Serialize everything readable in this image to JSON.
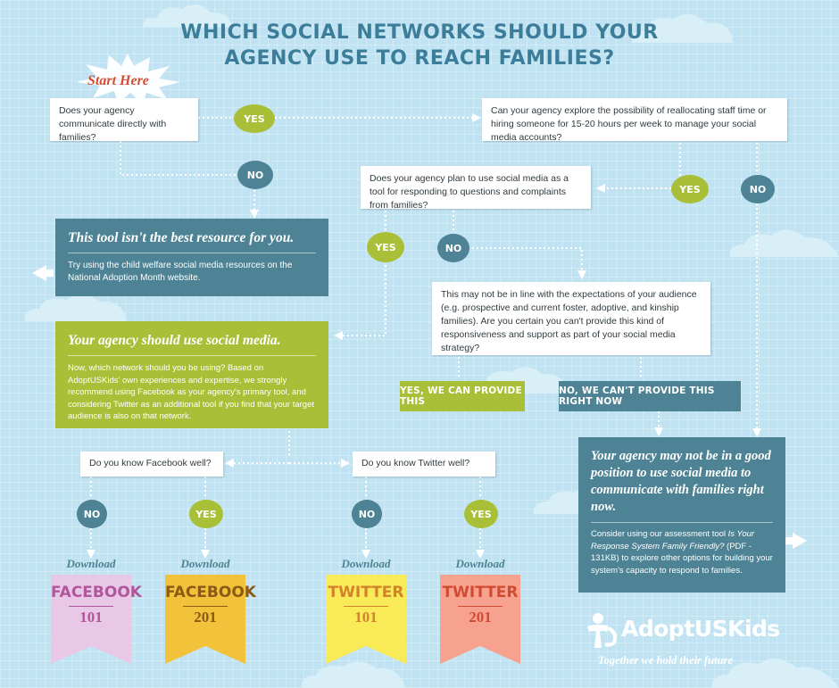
{
  "title": {
    "line1": "WHICH SOCIAL NETWORKS SHOULD YOUR",
    "line2": "AGENCY USE TO REACH FAMILIES?"
  },
  "start_label": "Start Here",
  "questions": {
    "communicate": "Does your agency communicate directly with families?",
    "reallocate": "Can your agency explore the possibility of reallocating staff time or hiring someone for 15-20 hours per week to manage your social media accounts?",
    "respond": "Does your agency plan to use social media as a tool for responding to questions and complaints from families?",
    "expectations": "This may not be in line with the expectations of your audience (e.g. prospective and current foster, adoptive, and kinship families). Are you certain you can't provide this kind of responsiveness and support as part of your social media strategy?",
    "facebook": "Do you know Facebook well?",
    "twitter": "Do you know Twitter well?"
  },
  "answers": {
    "yes": "YES",
    "no": "NO"
  },
  "banners": {
    "can_provide": "YES, WE CAN PROVIDE THIS",
    "cant_provide": "NO, WE CAN'T PROVIDE THIS RIGHT NOW"
  },
  "results": {
    "not_best": {
      "heading": "This tool isn't the best resource for you.",
      "body": "Try using the child welfare social media resources on the National Adoption Month website."
    },
    "use_social": {
      "heading": "Your agency should use social media.",
      "body": "Now, which network should you be using? Based on AdoptUSKids' own experiences and expertise, we strongly recommend using Facebook as your agency's primary tool, and considering Twitter as an additional tool if you find that your target audience is also on that network."
    },
    "not_position": {
      "heading": "Your agency may not be in a good position to use social media to communicate with families right now.",
      "body_prefix": "Consider using our assessment tool ",
      "body_italic": "Is Your Response System Family Friendly?",
      "body_suffix": " (PDF - 131KB) to explore other options for building your system's capacity to respond to families."
    }
  },
  "downloads": [
    {
      "label": "Download",
      "name": "FACEBOOK",
      "number": "101",
      "color": "#e8c8e6",
      "text_color": "#b2569c"
    },
    {
      "label": "Download",
      "name": "FACEBOOK",
      "number": "201",
      "color": "#f2c33a",
      "text_color": "#8a5a16"
    },
    {
      "label": "Download",
      "name": "TWITTER",
      "number": "101",
      "color": "#f9ea57",
      "text_color": "#d4812c"
    },
    {
      "label": "Download",
      "name": "TWITTER",
      "number": "201",
      "color": "#f7a28f",
      "text_color": "#d14a34"
    }
  ],
  "logo": {
    "text": "AdoptUSKids",
    "tagline": "Together we hold their future"
  },
  "colors": {
    "background": "#bfe3f2",
    "title": "#3c7d9a",
    "yes": "#a9bf37",
    "no": "#4d8394",
    "start": "#d34d33"
  }
}
